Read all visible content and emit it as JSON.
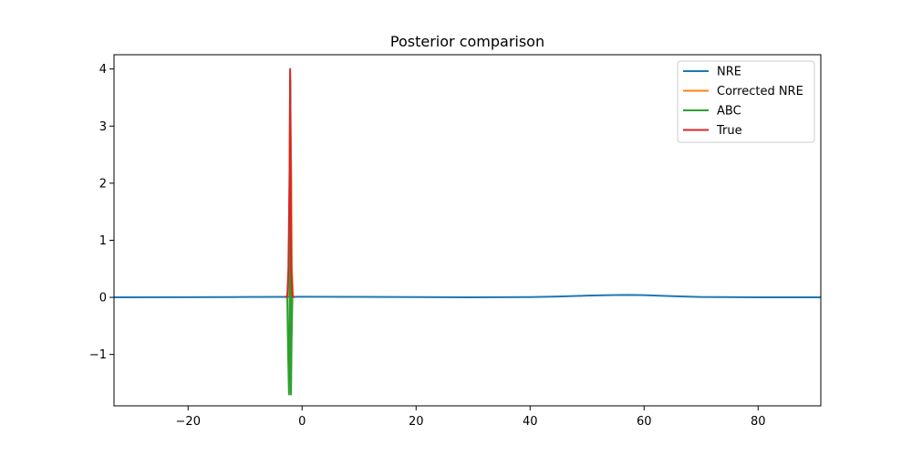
{
  "chart_data": {
    "type": "line",
    "title": "Posterior comparison",
    "xlabel": "",
    "ylabel": "",
    "xlim": [
      -33,
      91
    ],
    "ylim": [
      -1.9,
      4.25
    ],
    "xticks": [
      -20,
      0,
      20,
      40,
      60,
      80
    ],
    "yticks": [
      -1,
      0,
      1,
      2,
      3,
      4
    ],
    "xtick_labels": [
      "−20",
      "0",
      "20",
      "40",
      "60",
      "80"
    ],
    "ytick_labels": [
      "−1",
      "0",
      "1",
      "2",
      "3",
      "4"
    ],
    "grid": false,
    "legend_position": "top-right",
    "series": [
      {
        "name": "NRE",
        "color": "#1f77b4",
        "x": [
          -33,
          -20,
          -10,
          -2,
          0,
          10,
          20,
          30,
          40,
          45,
          50,
          55,
          57,
          60,
          65,
          70,
          80,
          91
        ],
        "y": [
          0.0,
          0.003,
          0.006,
          0.008,
          0.01,
          0.008,
          0.004,
          0.001,
          0.004,
          0.015,
          0.03,
          0.04,
          0.042,
          0.038,
          0.02,
          0.006,
          0.001,
          0.0
        ]
      },
      {
        "name": "Corrected NRE",
        "color": "#ff7f0e",
        "x": [
          -2.8,
          -2.5,
          -2.3,
          -2.2,
          -2.1,
          -1.9,
          -1.8,
          -1.6
        ],
        "y": [
          0.0,
          0.05,
          0.5,
          2.0,
          3.9,
          2.0,
          0.5,
          0.0
        ]
      },
      {
        "name": "ABC",
        "color": "#2ca02c",
        "x": [
          -2.6,
          -2.45,
          -2.3,
          -2.2,
          -2.05,
          -1.95,
          -1.85,
          -1.7
        ],
        "y": [
          0.0,
          -1.0,
          -1.7,
          -0.5,
          3.8,
          -1.7,
          -0.8,
          0.0
        ]
      },
      {
        "name": "True",
        "color": "#d62728",
        "x": [
          -3.0,
          -2.6,
          -2.4,
          -2.2,
          -2.1,
          -2.0,
          -1.9,
          -1.7,
          -1.3
        ],
        "y": [
          0.0,
          0.02,
          0.5,
          2.2,
          4.0,
          2.2,
          0.5,
          0.02,
          0.0
        ]
      }
    ]
  }
}
